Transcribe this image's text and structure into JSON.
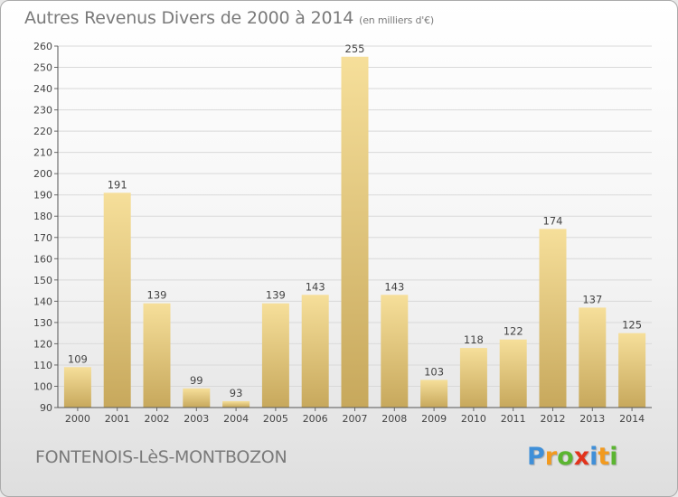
{
  "title": "Autres Revenus Divers de 2000 à 2014",
  "unit": "(en milliers d'€)",
  "place": "FONTENOIS-LèS-MONTBOZON",
  "logo": {
    "letters": [
      "P",
      "r",
      "o",
      "x",
      "i",
      "t",
      "i"
    ],
    "colors": [
      "#3f8fd8",
      "#f29a1f",
      "#5bb531",
      "#e2331c",
      "#3f8fd8",
      "#f29a1f",
      "#5bb531"
    ]
  },
  "colors": {
    "bar_light": "#f6df9a",
    "bar_dark": "#c7a85c",
    "grid": "#d9d9d9"
  },
  "chart_data": {
    "type": "bar",
    "title": "Autres Revenus Divers de 2000 à 2014",
    "categories": [
      "2000",
      "2001",
      "2002",
      "2003",
      "2004",
      "2005",
      "2006",
      "2007",
      "2008",
      "2009",
      "2010",
      "2011",
      "2012",
      "2013",
      "2014"
    ],
    "values": [
      109,
      191,
      139,
      99,
      93,
      139,
      143,
      255,
      143,
      103,
      118,
      122,
      174,
      137,
      125
    ],
    "ylim": [
      90,
      260
    ],
    "ytick_step": 10,
    "grid": true,
    "legend": "none"
  }
}
